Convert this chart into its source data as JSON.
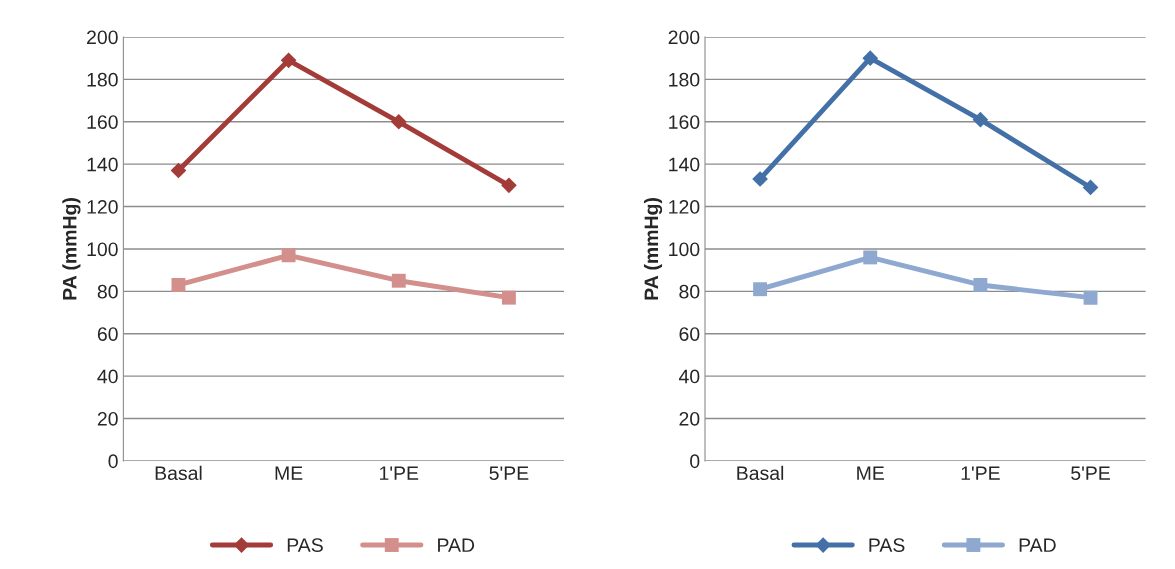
{
  "chart_data": [
    {
      "type": "line",
      "ylabel": "PA (mmHg)",
      "categories": [
        "Basal",
        "ME",
        "1'PE",
        "5'PE"
      ],
      "ylim": [
        0,
        200
      ],
      "yticks": [
        0,
        20,
        40,
        60,
        80,
        100,
        120,
        140,
        160,
        180,
        200
      ],
      "grid": "y",
      "legend": "bottom",
      "series": [
        {
          "name": "PAS",
          "color": "#a33b38",
          "marker": "diamond",
          "values": [
            137,
            189,
            160,
            130
          ]
        },
        {
          "name": "PAD",
          "color": "#d38f8c",
          "marker": "square",
          "values": [
            83,
            97,
            85,
            77
          ]
        }
      ]
    },
    {
      "type": "line",
      "ylabel": "PA (mmHg)",
      "categories": [
        "Basal",
        "ME",
        "1'PE",
        "5'PE"
      ],
      "ylim": [
        0,
        200
      ],
      "yticks": [
        0,
        20,
        40,
        60,
        80,
        100,
        120,
        140,
        160,
        180,
        200
      ],
      "grid": "y",
      "legend": "bottom",
      "series": [
        {
          "name": "PAS",
          "color": "#4470a8",
          "marker": "diamond",
          "values": [
            133,
            190,
            161,
            129
          ]
        },
        {
          "name": "PAD",
          "color": "#8fa8d0",
          "marker": "square",
          "values": [
            81,
            96,
            83,
            77
          ]
        }
      ]
    }
  ]
}
